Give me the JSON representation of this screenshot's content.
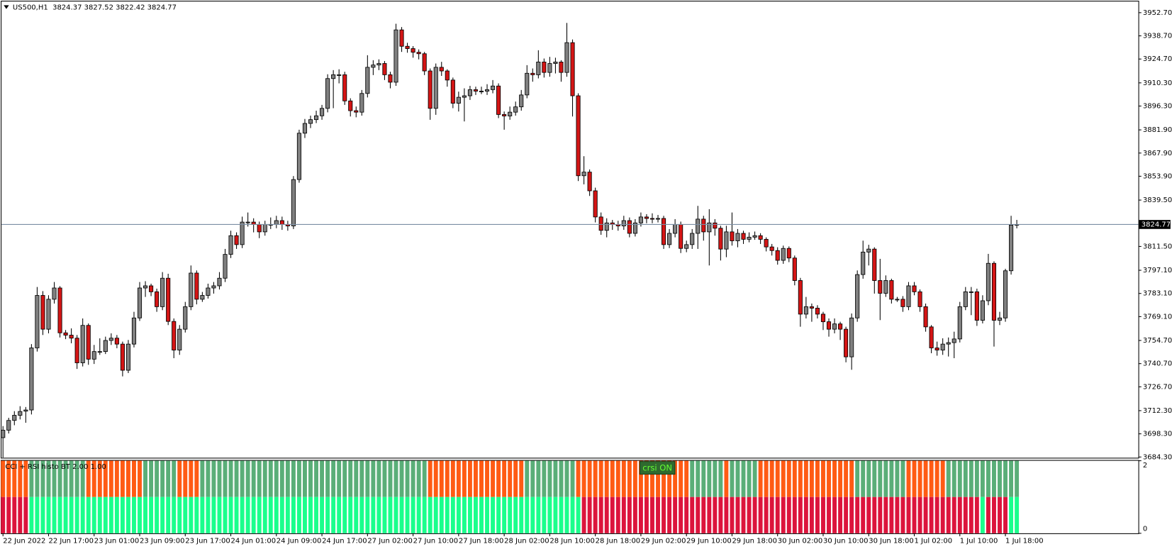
{
  "chart_data": {
    "type": "candlestick",
    "title": "US500,H1  3824.37 3827.52 3822.42 3824.77",
    "ylim": [
      3683.4,
      3959.0
    ],
    "yticks": [
      {
        "value": 3952.7,
        "label": "3952.70"
      },
      {
        "value": 3938.7,
        "label": "3938.70"
      },
      {
        "value": 3924.7,
        "label": "3924.70"
      },
      {
        "value": 3910.3,
        "label": "3910.30"
      },
      {
        "value": 3896.3,
        "label": "3896.30"
      },
      {
        "value": 3881.9,
        "label": "3881.90"
      },
      {
        "value": 3867.9,
        "label": "3867.90"
      },
      {
        "value": 3853.9,
        "label": "3853.90"
      },
      {
        "value": 3839.5,
        "label": "3839.50"
      },
      {
        "value": 3811.5,
        "label": "3811.50"
      },
      {
        "value": 3797.1,
        "label": "3797.10"
      },
      {
        "value": 3783.1,
        "label": "3783.10"
      },
      {
        "value": 3769.1,
        "label": "3769.10"
      },
      {
        "value": 3754.7,
        "label": "3754.70"
      },
      {
        "value": 3740.7,
        "label": "3740.70"
      },
      {
        "value": 3726.7,
        "label": "3726.70"
      },
      {
        "value": 3712.3,
        "label": "3712.30"
      },
      {
        "value": 3698.3,
        "label": "3698.30"
      },
      {
        "value": 3684.3,
        "label": "3684.30"
      }
    ],
    "current_price": {
      "value": 3824.77,
      "label": "3824.77"
    },
    "up_color": "#808080",
    "down_color": "#d41515",
    "x_labels": [
      "22 Jun 2022",
      "22 Jun 17:00",
      "23 Jun 01:00",
      "23 Jun 09:00",
      "23 Jun 17:00",
      "24 Jun 01:00",
      "24 Jun 09:00",
      "24 Jun 17:00",
      "27 Jun 02:00",
      "27 Jun 10:00",
      "27 Jun 18:00",
      "28 Jun 02:00",
      "28 Jun 10:00",
      "28 Jun 18:00",
      "29 Jun 02:00",
      "29 Jun 10:00",
      "29 Jun 18:00",
      "30 Jun 02:00",
      "30 Jun 10:00",
      "30 Jun 18:00",
      "1 Jul 02:00",
      "1 Jul 10:00",
      "1 Jul 18:00"
    ],
    "candles": [
      [
        3696.0,
        3703.0,
        3684.0,
        3700.5
      ],
      [
        3700.5,
        3708.0,
        3698.5,
        3706.4
      ],
      [
        3706.4,
        3712.0,
        3703.5,
        3709.5
      ],
      [
        3709.5,
        3715.0,
        3707.0,
        3711.8
      ],
      [
        3712.0,
        3714.5,
        3705.0,
        3712.7
      ],
      [
        3712.7,
        3752.5,
        3710.0,
        3750.2
      ],
      [
        3750.2,
        3787.0,
        3748.0,
        3781.9
      ],
      [
        3781.9,
        3784.5,
        3758.0,
        3761.5
      ],
      [
        3761.5,
        3782.0,
        3759.0,
        3779.6
      ],
      [
        3779.6,
        3790.0,
        3777.0,
        3786.4
      ],
      [
        3786.4,
        3787.5,
        3756.5,
        3759.3
      ],
      [
        3759.3,
        3761.0,
        3755.5,
        3757.9
      ],
      [
        3757.9,
        3762.0,
        3753.0,
        3756.1
      ],
      [
        3756.1,
        3758.0,
        3737.5,
        3741.2
      ],
      [
        3741.2,
        3768.0,
        3739.0,
        3763.8
      ],
      [
        3763.8,
        3765.0,
        3740.0,
        3743.4
      ],
      [
        3743.4,
        3752.0,
        3740.5,
        3748.0
      ],
      [
        3748.0,
        3756.0,
        3746.0,
        3748.0
      ],
      [
        3748.0,
        3757.0,
        3746.5,
        3754.7
      ],
      [
        3754.7,
        3759.0,
        3752.0,
        3756.1
      ],
      [
        3756.1,
        3758.0,
        3750.0,
        3752.5
      ],
      [
        3752.5,
        3754.0,
        3733.0,
        3736.7
      ],
      [
        3736.7,
        3755.0,
        3735.0,
        3752.5
      ],
      [
        3752.5,
        3772.0,
        3750.5,
        3768.3
      ],
      [
        3768.3,
        3790.0,
        3766.5,
        3786.4
      ],
      [
        3786.4,
        3790.5,
        3781.0,
        3787.7
      ],
      [
        3787.7,
        3789.0,
        3781.5,
        3784.1
      ],
      [
        3784.1,
        3786.0,
        3772.0,
        3775.1
      ],
      [
        3775.1,
        3796.0,
        3773.0,
        3792.3
      ],
      [
        3792.3,
        3795.0,
        3764.0,
        3766.2
      ],
      [
        3766.2,
        3768.0,
        3744.0,
        3748.9
      ],
      [
        3748.9,
        3764.0,
        3746.0,
        3761.5
      ],
      [
        3761.5,
        3778.0,
        3759.5,
        3775.1
      ],
      [
        3775.1,
        3800.0,
        3773.0,
        3795.4
      ],
      [
        3795.4,
        3797.0,
        3776.5,
        3779.6
      ],
      [
        3779.6,
        3784.0,
        3778.0,
        3781.9
      ],
      [
        3781.9,
        3789.0,
        3780.0,
        3786.4
      ],
      [
        3786.4,
        3790.0,
        3783.0,
        3787.7
      ],
      [
        3787.7,
        3796.0,
        3785.5,
        3792.3
      ],
      [
        3792.3,
        3810.0,
        3790.0,
        3806.7
      ],
      [
        3806.7,
        3821.0,
        3804.5,
        3818.0
      ],
      [
        3818.0,
        3820.0,
        3810.0,
        3812.6
      ],
      [
        3812.6,
        3829.5,
        3810.5,
        3826.2
      ],
      [
        3826.2,
        3832.0,
        3823.5,
        3826.2
      ],
      [
        3826.2,
        3828.5,
        3820.0,
        3824.8
      ],
      [
        3824.8,
        3826.5,
        3816.5,
        3820.3
      ],
      [
        3820.3,
        3827.0,
        3818.0,
        3824.8
      ],
      [
        3824.8,
        3829.0,
        3822.0,
        3824.8
      ],
      [
        3824.8,
        3830.0,
        3822.5,
        3827.1
      ],
      [
        3827.1,
        3829.5,
        3821.5,
        3824.8
      ],
      [
        3824.8,
        3827.0,
        3821.0,
        3823.9
      ],
      [
        3823.9,
        3854.0,
        3822.0,
        3851.9
      ],
      [
        3851.9,
        3882.0,
        3850.0,
        3879.9
      ],
      [
        3879.9,
        3888.5,
        3877.0,
        3885.8
      ],
      [
        3885.8,
        3890.5,
        3883.0,
        3888.1
      ],
      [
        3888.1,
        3893.5,
        3886.0,
        3890.4
      ],
      [
        3890.4,
        3897.0,
        3888.0,
        3894.9
      ],
      [
        3894.9,
        3915.5,
        3892.5,
        3912.9
      ],
      [
        3912.9,
        3918.0,
        3895.0,
        3915.2
      ],
      [
        3915.2,
        3918.5,
        3910.0,
        3915.2
      ],
      [
        3915.2,
        3917.0,
        3897.0,
        3899.4
      ],
      [
        3899.4,
        3901.0,
        3890.0,
        3893.5
      ],
      [
        3893.5,
        3896.0,
        3889.5,
        3892.6
      ],
      [
        3892.6,
        3906.0,
        3890.5,
        3903.9
      ],
      [
        3903.9,
        3927.0,
        3901.5,
        3919.7
      ],
      [
        3919.7,
        3924.0,
        3915.0,
        3921.1
      ],
      [
        3921.1,
        3924.5,
        3918.0,
        3922.0
      ],
      [
        3922.0,
        3923.5,
        3912.0,
        3915.2
      ],
      [
        3915.2,
        3917.0,
        3907.0,
        3910.7
      ],
      [
        3910.7,
        3946.0,
        3908.5,
        3942.3
      ],
      [
        3942.3,
        3944.0,
        3929.0,
        3932.4
      ],
      [
        3932.4,
        3934.5,
        3928.5,
        3931.0
      ],
      [
        3931.0,
        3932.5,
        3925.5,
        3928.8
      ],
      [
        3928.8,
        3930.5,
        3924.5,
        3927.9
      ],
      [
        3927.9,
        3929.0,
        3915.0,
        3917.5
      ],
      [
        3917.5,
        3919.0,
        3888.0,
        3894.9
      ],
      [
        3894.9,
        3922.0,
        3891.0,
        3919.7
      ],
      [
        3919.7,
        3923.0,
        3914.5,
        3917.5
      ],
      [
        3917.5,
        3918.5,
        3908.0,
        3912.0
      ],
      [
        3912.0,
        3913.5,
        3895.0,
        3898.0
      ],
      [
        3898.0,
        3905.0,
        3893.0,
        3901.6
      ],
      [
        3901.6,
        3907.0,
        3887.0,
        3902.5
      ],
      [
        3902.5,
        3908.5,
        3900.0,
        3906.2
      ],
      [
        3906.2,
        3908.0,
        3903.0,
        3905.3
      ],
      [
        3905.3,
        3908.0,
        3903.5,
        3905.3
      ],
      [
        3905.3,
        3909.5,
        3903.0,
        3906.2
      ],
      [
        3906.2,
        3912.0,
        3904.0,
        3908.4
      ],
      [
        3908.4,
        3910.0,
        3889.0,
        3891.2
      ],
      [
        3891.2,
        3893.0,
        3882.0,
        3890.3
      ],
      [
        3890.3,
        3896.0,
        3888.0,
        3892.6
      ],
      [
        3892.6,
        3899.0,
        3890.5,
        3895.8
      ],
      [
        3895.8,
        3906.0,
        3893.5,
        3903.0
      ],
      [
        3903.0,
        3921.0,
        3901.0,
        3916.1
      ],
      [
        3916.1,
        3919.0,
        3911.0,
        3915.2
      ],
      [
        3915.2,
        3930.0,
        3913.0,
        3922.9
      ],
      [
        3922.9,
        3925.0,
        3913.5,
        3916.6
      ],
      [
        3916.6,
        3926.0,
        3914.0,
        3922.0
      ],
      [
        3922.0,
        3925.5,
        3916.0,
        3922.9
      ],
      [
        3922.9,
        3924.0,
        3911.0,
        3916.6
      ],
      [
        3916.6,
        3946.5,
        3914.0,
        3934.6
      ],
      [
        3934.6,
        3936.5,
        3890.0,
        3902.5
      ],
      [
        3902.5,
        3904.0,
        3851.0,
        3854.2
      ],
      [
        3854.2,
        3866.0,
        3849.0,
        3856.4
      ],
      [
        3856.4,
        3858.0,
        3842.0,
        3845.1
      ],
      [
        3845.1,
        3847.0,
        3826.0,
        3829.3
      ],
      [
        3829.3,
        3832.0,
        3818.5,
        3821.2
      ],
      [
        3821.2,
        3828.5,
        3817.0,
        3825.7
      ],
      [
        3825.7,
        3827.5,
        3821.5,
        3824.8
      ],
      [
        3824.8,
        3827.0,
        3821.0,
        3823.9
      ],
      [
        3823.9,
        3830.0,
        3821.5,
        3827.1
      ],
      [
        3827.1,
        3829.0,
        3817.0,
        3819.4
      ],
      [
        3819.4,
        3828.0,
        3817.5,
        3825.7
      ],
      [
        3825.7,
        3832.0,
        3823.5,
        3829.3
      ],
      [
        3829.3,
        3831.0,
        3825.5,
        3828.4
      ],
      [
        3828.4,
        3831.5,
        3825.5,
        3828.0
      ],
      [
        3828.0,
        3830.5,
        3826.0,
        3828.4
      ],
      [
        3828.4,
        3830.0,
        3810.0,
        3812.6
      ],
      [
        3812.6,
        3822.0,
        3810.5,
        3819.4
      ],
      [
        3819.4,
        3828.0,
        3817.0,
        3824.8
      ],
      [
        3824.8,
        3826.5,
        3807.5,
        3810.3
      ],
      [
        3810.3,
        3815.0,
        3808.0,
        3812.6
      ],
      [
        3812.6,
        3822.0,
        3810.0,
        3819.4
      ],
      [
        3819.4,
        3836.0,
        3810.0,
        3828.0
      ],
      [
        3828.0,
        3830.0,
        3815.0,
        3820.3
      ],
      [
        3820.3,
        3834.0,
        3800.0,
        3825.7
      ],
      [
        3825.7,
        3828.0,
        3818.0,
        3822.5
      ],
      [
        3822.5,
        3824.0,
        3803.0,
        3809.9
      ],
      [
        3809.9,
        3824.0,
        3805.0,
        3820.3
      ],
      [
        3820.3,
        3832.0,
        3812.0,
        3814.9
      ],
      [
        3814.9,
        3822.0,
        3811.0,
        3819.4
      ],
      [
        3819.4,
        3821.0,
        3813.0,
        3815.8
      ],
      [
        3815.8,
        3820.0,
        3814.0,
        3817.1
      ],
      [
        3817.1,
        3820.5,
        3815.5,
        3818.0
      ],
      [
        3818.0,
        3819.5,
        3813.0,
        3815.8
      ],
      [
        3815.8,
        3817.0,
        3808.5,
        3811.2
      ],
      [
        3811.2,
        3813.0,
        3806.0,
        3809.0
      ],
      [
        3809.0,
        3811.0,
        3800.5,
        3803.1
      ],
      [
        3803.1,
        3812.0,
        3801.0,
        3810.3
      ],
      [
        3810.3,
        3811.5,
        3802.0,
        3804.5
      ],
      [
        3804.5,
        3806.0,
        3788.0,
        3790.9
      ],
      [
        3790.9,
        3792.5,
        3763.0,
        3770.6
      ],
      [
        3770.6,
        3781.0,
        3768.0,
        3775.1
      ],
      [
        3775.1,
        3777.0,
        3766.0,
        3774.2
      ],
      [
        3774.2,
        3776.0,
        3768.0,
        3770.6
      ],
      [
        3770.6,
        3772.0,
        3761.0,
        3766.0
      ],
      [
        3766.0,
        3768.0,
        3757.0,
        3761.5
      ],
      [
        3761.5,
        3768.0,
        3759.0,
        3764.7
      ],
      [
        3764.7,
        3766.0,
        3755.0,
        3761.5
      ],
      [
        3761.5,
        3763.0,
        3741.5,
        3744.8
      ],
      [
        3744.8,
        3771.0,
        3737.0,
        3768.3
      ],
      [
        3768.3,
        3797.0,
        3766.0,
        3794.5
      ],
      [
        3794.5,
        3815.0,
        3792.0,
        3808.1
      ],
      [
        3808.1,
        3812.5,
        3800.0,
        3809.9
      ],
      [
        3809.9,
        3811.0,
        3783.0,
        3790.9
      ],
      [
        3790.9,
        3804.0,
        3767.0,
        3783.2
      ],
      [
        3783.2,
        3794.0,
        3781.0,
        3790.9
      ],
      [
        3790.9,
        3792.0,
        3777.0,
        3779.6
      ],
      [
        3779.6,
        3781.0,
        3778.0,
        3779.6
      ],
      [
        3779.6,
        3781.5,
        3772.0,
        3775.1
      ],
      [
        3775.1,
        3790.0,
        3773.0,
        3787.7
      ],
      [
        3787.7,
        3790.0,
        3782.0,
        3784.1
      ],
      [
        3784.1,
        3785.5,
        3772.0,
        3775.1
      ],
      [
        3775.1,
        3777.0,
        3760.0,
        3762.9
      ],
      [
        3762.9,
        3764.0,
        3747.0,
        3750.2
      ],
      [
        3750.2,
        3754.0,
        3745.5,
        3748.9
      ],
      [
        3748.9,
        3756.0,
        3746.0,
        3752.5
      ],
      [
        3752.5,
        3756.5,
        3745.0,
        3753.4
      ],
      [
        3753.4,
        3760.0,
        3744.0,
        3755.6
      ],
      [
        3755.6,
        3778.0,
        3753.5,
        3775.1
      ],
      [
        3775.1,
        3787.0,
        3773.0,
        3784.1
      ],
      [
        3784.1,
        3787.0,
        3770.0,
        3784.1
      ],
      [
        3784.1,
        3786.0,
        3763.5,
        3766.9
      ],
      [
        3766.9,
        3782.0,
        3765.0,
        3778.7
      ],
      [
        3778.7,
        3807.0,
        3776.0,
        3801.3
      ],
      [
        3801.3,
        3802.5,
        3751.0,
        3766.9
      ],
      [
        3766.9,
        3772.0,
        3764.0,
        3768.3
      ],
      [
        3768.3,
        3798.0,
        3766.0,
        3796.8
      ],
      [
        3796.8,
        3830.0,
        3794.5,
        3824.4
      ],
      [
        3824.37,
        3827.52,
        3822.42,
        3824.77
      ]
    ],
    "indicator": {
      "name": "CCI + RSI histo BT 2.00 1.00",
      "button": "crsi ON",
      "ylim": [
        0,
        2
      ],
      "yticks": [
        0,
        2
      ],
      "upper_runs": [
        {
          "color": "#ff5b14",
          "count": 5
        },
        {
          "color": "#5aae78",
          "count": 10
        },
        {
          "color": "#ff5b14",
          "count": 10
        },
        {
          "color": "#5aae78",
          "count": 6
        },
        {
          "color": "#ff5b14",
          "count": 4
        },
        {
          "color": "#5aae78",
          "count": 40
        },
        {
          "color": "#ff5b14",
          "count": 17
        },
        {
          "color": "#5aae78",
          "count": 9
        },
        {
          "color": "#ff5b14",
          "count": 20
        },
        {
          "color": "#5aae78",
          "count": 6
        },
        {
          "color": "#ff5b14",
          "count": 1
        },
        {
          "color": "#5aae78",
          "count": 5
        },
        {
          "color": "#ff5b14",
          "count": 17
        },
        {
          "color": "#5aae78",
          "count": 9
        },
        {
          "color": "#ff5b14",
          "count": 7
        },
        {
          "color": "#5aae78",
          "count": 13
        }
      ],
      "lower_runs": [
        {
          "color": "#dc143c",
          "count": 5
        },
        {
          "color": "#1aff8c",
          "count": 97
        },
        {
          "color": "#dc143c",
          "count": 70
        },
        {
          "color": "#1aff8c",
          "count": 1
        },
        {
          "color": "#dc143c",
          "count": 4
        },
        {
          "color": "#1aff8c",
          "count": 2
        }
      ]
    }
  }
}
